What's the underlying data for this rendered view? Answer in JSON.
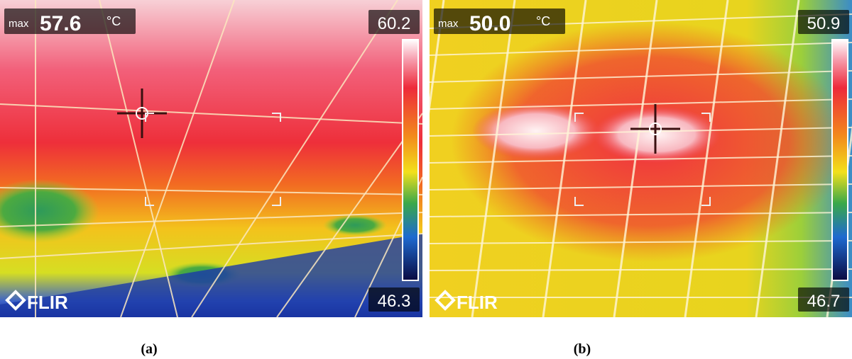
{
  "panels": [
    {
      "max_label": "max",
      "max_value": "57.6",
      "unit": "°C",
      "scale_max": "60.2",
      "scale_min": "46.3",
      "logo": "FLIR",
      "caption": "(a)"
    },
    {
      "max_label": "max",
      "max_value": "50.0",
      "unit": "°C",
      "scale_max": "50.9",
      "scale_min": "46.7",
      "logo": "FLIR",
      "caption": "(b)"
    }
  ]
}
